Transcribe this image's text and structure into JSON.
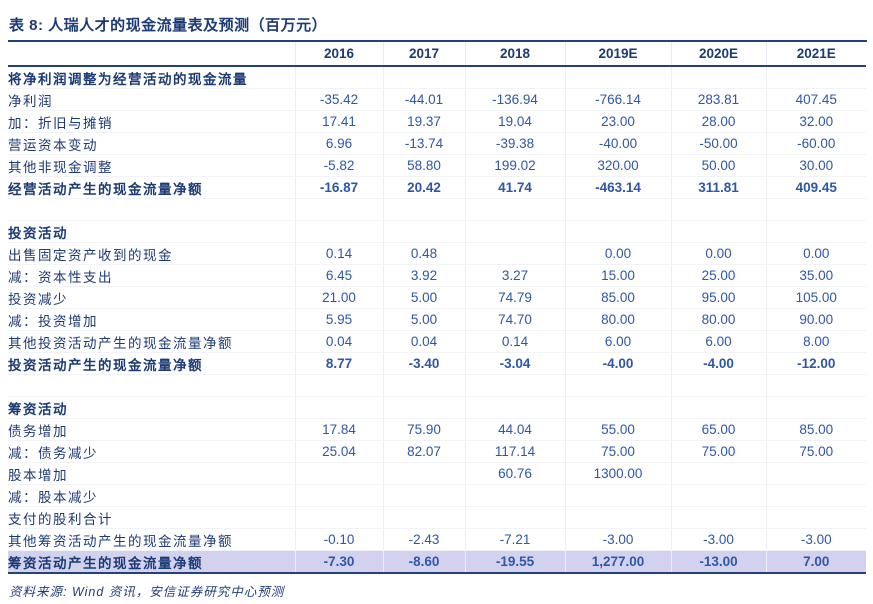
{
  "title": "表 8: 人瑞人才的现金流量表及预测（百万元）",
  "source": "资料来源: Wind 资讯，安信证券研究中心预测",
  "columns": [
    "2016",
    "2017",
    "2018",
    "2019E",
    "2020E",
    "2021E"
  ],
  "rows": [
    {
      "label": "将净利润调整为经营活动的现金流量",
      "indent": "section",
      "bold": true,
      "highlight": false,
      "values": [
        "",
        "",
        "",
        "",
        "",
        ""
      ]
    },
    {
      "label": "净利润",
      "indent": "a",
      "bold": false,
      "highlight": false,
      "values": [
        "-35.42",
        "-44.01",
        "-136.94",
        "-766.14",
        "283.81",
        "407.45"
      ]
    },
    {
      "label": "加：折旧与摊销",
      "indent": "a",
      "bold": false,
      "highlight": false,
      "values": [
        "17.41",
        "19.37",
        "19.04",
        "23.00",
        "28.00",
        "32.00"
      ]
    },
    {
      "label": "营运资本变动",
      "indent": "b",
      "bold": false,
      "highlight": false,
      "values": [
        "6.96",
        "-13.74",
        "-39.38",
        "-40.00",
        "-50.00",
        "-60.00"
      ]
    },
    {
      "label": "其他非现金调整",
      "indent": "b",
      "bold": false,
      "highlight": false,
      "values": [
        "-5.82",
        "58.80",
        "199.02",
        "320.00",
        "50.00",
        "30.00"
      ]
    },
    {
      "label": "经营活动产生的现金流量净额",
      "indent": "c",
      "bold": true,
      "highlight": false,
      "values": [
        "-16.87",
        "20.42",
        "41.74",
        "-463.14",
        "311.81",
        "409.45"
      ]
    },
    {
      "label": "",
      "indent": "section",
      "bold": false,
      "highlight": false,
      "values": [
        "",
        "",
        "",
        "",
        "",
        ""
      ]
    },
    {
      "label": "投资活动",
      "indent": "section",
      "bold": true,
      "highlight": false,
      "values": [
        "",
        "",
        "",
        "",
        "",
        ""
      ]
    },
    {
      "label": "出售固定资产收到的现金",
      "indent": "c",
      "bold": false,
      "highlight": false,
      "values": [
        "0.14",
        "0.48",
        "",
        "0.00",
        "0.00",
        "0.00"
      ]
    },
    {
      "label": "减：资本性支出",
      "indent": "c",
      "bold": false,
      "highlight": false,
      "values": [
        "6.45",
        "3.92",
        "3.27",
        "15.00",
        "25.00",
        "35.00"
      ]
    },
    {
      "label": "投资减少",
      "indent": "c",
      "bold": false,
      "highlight": false,
      "values": [
        "21.00",
        "5.00",
        "74.79",
        "85.00",
        "95.00",
        "105.00"
      ]
    },
    {
      "label": "减：投资增加",
      "indent": "c",
      "bold": false,
      "highlight": false,
      "values": [
        "5.95",
        "5.00",
        "74.70",
        "80.00",
        "80.00",
        "90.00"
      ]
    },
    {
      "label": "其他投资活动产生的现金流量净额",
      "indent": "c",
      "bold": false,
      "highlight": false,
      "values": [
        "0.04",
        "0.04",
        "0.14",
        "6.00",
        "6.00",
        "8.00"
      ]
    },
    {
      "label": "投资活动产生的现金流量净额",
      "indent": "c",
      "bold": true,
      "highlight": false,
      "values": [
        "8.77",
        "-3.40",
        "-3.04",
        "-4.00",
        "-4.00",
        "-12.00"
      ]
    },
    {
      "label": "",
      "indent": "section",
      "bold": false,
      "highlight": false,
      "values": [
        "",
        "",
        "",
        "",
        "",
        ""
      ]
    },
    {
      "label": "筹资活动",
      "indent": "section",
      "bold": true,
      "highlight": false,
      "values": [
        "",
        "",
        "",
        "",
        "",
        ""
      ]
    },
    {
      "label": "债务增加",
      "indent": "c",
      "bold": false,
      "highlight": false,
      "values": [
        "17.84",
        "75.90",
        "44.04",
        "55.00",
        "65.00",
        "85.00"
      ]
    },
    {
      "label": "减：债务减少",
      "indent": "c",
      "bold": false,
      "highlight": false,
      "values": [
        "25.04",
        "82.07",
        "117.14",
        "75.00",
        "75.00",
        "75.00"
      ]
    },
    {
      "label": "股本增加",
      "indent": "c",
      "bold": false,
      "highlight": false,
      "values": [
        "",
        "",
        "60.76",
        "1300.00",
        "",
        ""
      ]
    },
    {
      "label": "减：股本减少",
      "indent": "c",
      "bold": false,
      "highlight": false,
      "values": [
        "",
        "",
        "",
        "",
        "",
        ""
      ]
    },
    {
      "label": "支付的股利合计",
      "indent": "b",
      "bold": false,
      "highlight": false,
      "values": [
        "",
        "",
        "",
        "",
        "",
        ""
      ]
    },
    {
      "label": "其他筹资活动产生的现金流量净额",
      "indent": "c",
      "bold": false,
      "highlight": false,
      "values": [
        "-0.10",
        "-2.43",
        "-7.21",
        "-3.00",
        "-3.00",
        "-3.00"
      ]
    },
    {
      "label": "筹资活动产生的现金流量净额",
      "indent": "c",
      "bold": true,
      "highlight": true,
      "values": [
        "-7.30",
        "-8.60",
        "-19.55",
        "1,277.00",
        "-13.00",
        "7.00"
      ]
    }
  ],
  "colors": {
    "heading_navy": "#1c3a74",
    "number_blue": "#2d57a8",
    "rule_navy": "#24417b",
    "highlight_row_bg": "#d2d2ee"
  }
}
